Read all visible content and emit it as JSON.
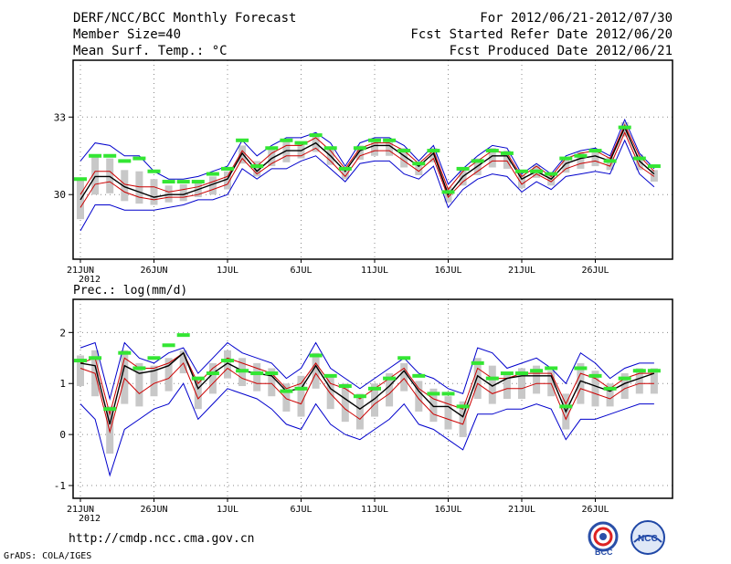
{
  "header": {
    "title": "DERF/NCC/BCC Monthly Forecast",
    "member": "Member Size=40",
    "variable": "Mean Surf. Temp.: °C",
    "period": "For 2012/06/21-2012/07/30",
    "started": "Fcst Started Refer Date 2012/06/20",
    "produced": "Fcst Produced Date 2012/06/21"
  },
  "footer": {
    "url": "http://cmdp.ncc.cma.gov.cn",
    "grads": "GrADS: COLA/IGES",
    "logo1": "BCC",
    "logo2": "NCC"
  },
  "colors": {
    "max_min": "#0000cc",
    "spread": "#cc0000",
    "mean": "#000000",
    "obs": "#33e633",
    "box": "#c8c8c8",
    "grid": "#888888"
  },
  "chart_data": [
    {
      "type": "line",
      "title": "Mean Surf. Temp.: °C",
      "ylim": [
        27.5,
        35.2
      ],
      "yticks": [
        30,
        33
      ],
      "xticks": [
        "21JUN",
        "26JUN",
        "1JUL",
        "6JUL",
        "11JUL",
        "16JUL",
        "21JUL",
        "26JUL"
      ],
      "xtick_index": [
        0,
        5,
        10,
        15,
        20,
        25,
        30,
        35
      ],
      "year_label": "2012",
      "x_count": 40,
      "series": [
        {
          "name": "max",
          "values": [
            31.3,
            32.0,
            31.9,
            31.5,
            31.5,
            30.9,
            30.6,
            30.6,
            30.7,
            30.9,
            31.1,
            32.1,
            31.5,
            31.9,
            32.2,
            32.2,
            32.4,
            32.0,
            31.1,
            32.0,
            32.2,
            32.2,
            31.9,
            31.3,
            31.9,
            30.4,
            31.0,
            31.5,
            31.9,
            31.8,
            30.8,
            31.2,
            30.8,
            31.5,
            31.7,
            31.8,
            31.5,
            32.9,
            31.6,
            31.0
          ]
        },
        {
          "name": "upper",
          "values": [
            30.0,
            30.9,
            30.9,
            30.4,
            30.3,
            30.3,
            30.1,
            30.2,
            30.3,
            30.5,
            30.7,
            31.7,
            31.1,
            31.6,
            31.9,
            31.9,
            32.2,
            31.7,
            31.0,
            31.8,
            32.0,
            32.0,
            31.7,
            31.2,
            31.7,
            30.2,
            30.9,
            31.3,
            31.7,
            31.6,
            30.7,
            31.1,
            30.7,
            31.4,
            31.6,
            31.7,
            31.4,
            32.7,
            31.5,
            30.9
          ]
        },
        {
          "name": "mean",
          "values": [
            29.8,
            30.7,
            30.7,
            30.3,
            30.1,
            29.9,
            30.0,
            30.0,
            30.2,
            30.4,
            30.6,
            31.6,
            30.9,
            31.4,
            31.7,
            31.7,
            32.0,
            31.5,
            30.9,
            31.7,
            31.9,
            31.9,
            31.5,
            31.1,
            31.6,
            30.0,
            30.7,
            31.1,
            31.5,
            31.5,
            30.6,
            30.9,
            30.6,
            31.2,
            31.4,
            31.5,
            31.3,
            32.6,
            31.3,
            30.8
          ]
        },
        {
          "name": "lower",
          "values": [
            29.5,
            30.4,
            30.5,
            30.1,
            29.9,
            29.8,
            29.9,
            29.9,
            30.0,
            30.2,
            30.4,
            31.4,
            30.8,
            31.2,
            31.5,
            31.5,
            31.8,
            31.3,
            30.7,
            31.5,
            31.7,
            31.7,
            31.3,
            30.9,
            31.4,
            29.9,
            30.5,
            30.9,
            31.3,
            31.3,
            30.4,
            30.8,
            30.5,
            31.0,
            31.2,
            31.3,
            31.1,
            32.4,
            31.1,
            30.7
          ]
        },
        {
          "name": "min",
          "values": [
            28.6,
            29.6,
            29.6,
            29.4,
            29.4,
            29.4,
            29.5,
            29.6,
            29.8,
            29.8,
            30.0,
            31.0,
            30.6,
            31.0,
            31.0,
            31.3,
            31.5,
            31.0,
            30.5,
            31.2,
            31.3,
            31.3,
            30.8,
            30.6,
            31.1,
            29.5,
            30.2,
            30.6,
            30.8,
            30.7,
            30.1,
            30.5,
            30.2,
            30.7,
            30.8,
            30.9,
            30.8,
            32.1,
            30.8,
            30.3
          ]
        },
        {
          "name": "obs",
          "values": [
            30.6,
            31.5,
            31.5,
            31.3,
            31.4,
            30.9,
            30.5,
            30.5,
            30.5,
            30.8,
            31.0,
            32.1,
            31.1,
            31.8,
            32.1,
            32.0,
            32.3,
            31.8,
            31.0,
            31.8,
            32.1,
            32.1,
            31.7,
            31.2,
            31.7,
            30.1,
            31.0,
            31.3,
            31.7,
            31.6,
            30.9,
            30.9,
            30.8,
            31.4,
            31.5,
            31.7,
            31.3,
            32.6,
            31.4,
            31.1
          ]
        }
      ]
    },
    {
      "type": "line",
      "title": "Prec.: log(mm/d)",
      "ylim": [
        -1.25,
        2.65
      ],
      "yticks": [
        -1,
        0,
        1,
        2
      ],
      "xticks": [
        "21JUN",
        "26JUN",
        "1JUL",
        "6JUL",
        "11JUL",
        "16JUL",
        "21JUL",
        "26JUL"
      ],
      "xtick_index": [
        0,
        5,
        10,
        15,
        20,
        25,
        30,
        35
      ],
      "year_label": "2012",
      "x_count": 40,
      "series": [
        {
          "name": "max",
          "values": [
            1.7,
            1.8,
            0.7,
            1.8,
            1.5,
            1.4,
            1.6,
            1.7,
            1.2,
            1.5,
            1.8,
            1.6,
            1.5,
            1.4,
            1.1,
            1.3,
            1.8,
            1.3,
            1.1,
            0.9,
            1.1,
            1.3,
            1.5,
            1.2,
            1.1,
            0.9,
            0.8,
            1.7,
            1.6,
            1.3,
            1.4,
            1.5,
            1.3,
            1.0,
            1.6,
            1.4,
            1.1,
            1.3,
            1.4,
            1.4
          ]
        },
        {
          "name": "upper",
          "values": [
            1.4,
            1.5,
            0.4,
            1.5,
            1.3,
            1.3,
            1.4,
            1.6,
            1.0,
            1.3,
            1.5,
            1.4,
            1.3,
            1.2,
            0.9,
            1.0,
            1.4,
            1.0,
            0.9,
            0.7,
            0.9,
            1.1,
            1.3,
            0.9,
            0.7,
            0.6,
            0.5,
            1.3,
            1.1,
            1.1,
            1.2,
            1.2,
            1.2,
            0.6,
            1.2,
            1.1,
            0.9,
            1.1,
            1.2,
            1.2
          ]
        },
        {
          "name": "mean",
          "values": [
            1.4,
            1.35,
            0.2,
            1.35,
            1.2,
            1.25,
            1.35,
            1.6,
            0.9,
            1.2,
            1.4,
            1.25,
            1.2,
            1.15,
            0.85,
            0.9,
            1.35,
            0.9,
            0.7,
            0.5,
            0.7,
            0.95,
            1.25,
            0.85,
            0.55,
            0.55,
            0.35,
            1.15,
            0.95,
            1.1,
            1.15,
            1.15,
            1.15,
            0.45,
            1.05,
            0.95,
            0.85,
            1.0,
            1.1,
            1.2
          ]
        },
        {
          "name": "lower",
          "values": [
            1.3,
            1.2,
            0.05,
            1.1,
            0.8,
            1.0,
            1.1,
            1.4,
            0.7,
            1.0,
            1.3,
            1.1,
            1.0,
            1.0,
            0.7,
            0.6,
            1.2,
            0.8,
            0.5,
            0.3,
            0.6,
            0.8,
            1.1,
            0.7,
            0.4,
            0.3,
            0.2,
            1.0,
            0.8,
            0.9,
            0.9,
            1.0,
            1.0,
            0.3,
            0.9,
            0.8,
            0.7,
            0.9,
            1.0,
            1.0
          ]
        },
        {
          "name": "min",
          "values": [
            0.6,
            0.3,
            -0.8,
            0.1,
            0.3,
            0.5,
            0.6,
            1.0,
            0.3,
            0.6,
            0.9,
            0.8,
            0.7,
            0.5,
            0.2,
            0.1,
            0.6,
            0.2,
            0.0,
            -0.1,
            0.1,
            0.3,
            0.6,
            0.2,
            0.1,
            -0.1,
            -0.3,
            0.4,
            0.4,
            0.5,
            0.5,
            0.6,
            0.5,
            -0.1,
            0.3,
            0.3,
            0.4,
            0.5,
            0.6,
            0.6
          ]
        },
        {
          "name": "obs",
          "values": [
            1.45,
            1.5,
            0.5,
            1.6,
            1.3,
            1.5,
            1.75,
            1.95,
            1.1,
            1.2,
            1.45,
            1.25,
            1.2,
            1.2,
            0.85,
            0.9,
            1.55,
            1.15,
            0.95,
            0.75,
            0.9,
            1.1,
            1.5,
            1.15,
            0.8,
            0.8,
            0.55,
            1.4,
            1.1,
            1.2,
            1.2,
            1.25,
            1.3,
            0.55,
            1.3,
            1.15,
            0.9,
            1.1,
            1.25,
            1.25
          ]
        }
      ]
    }
  ]
}
